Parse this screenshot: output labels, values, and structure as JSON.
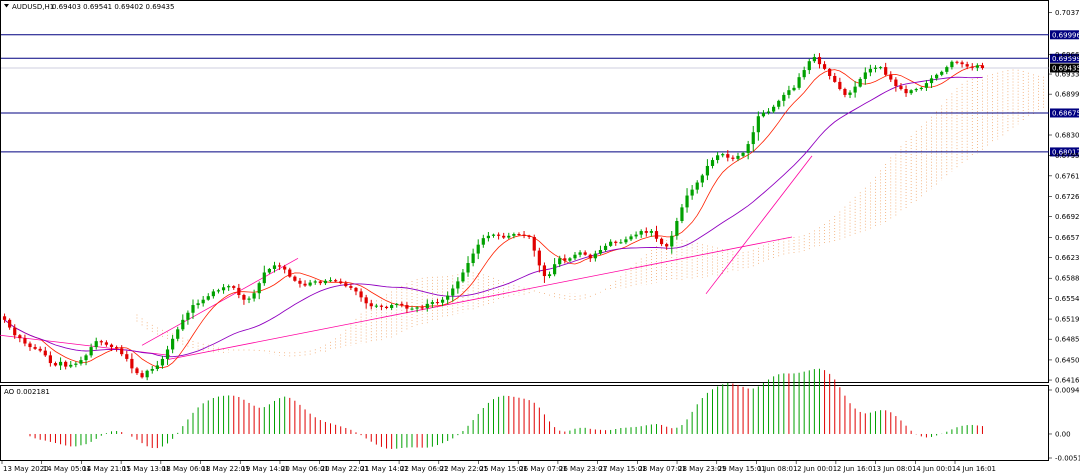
{
  "header": {
    "symbol_timeframe": "AUDUSD,H1",
    "ohlc": "0.69403 0.69541 0.69402 0.69435"
  },
  "indicator": {
    "label": "AO 0.002181",
    "scale": [
      "0.00948",
      "0.00",
      "-0.00518"
    ],
    "scale_values": [
      0.00948,
      0.0,
      -0.00518
    ]
  },
  "colors": {
    "bull": "#00a000",
    "bear": "#e00000",
    "ma_fast": "#ff2000",
    "ma_slow": "#9000c0",
    "trendline": "#ff00a0",
    "cloud": "#f0a060",
    "hline": "#000080",
    "price_label": "#000000"
  },
  "chart_data": {
    "type": "candlestick",
    "instrument": "AUDUSD",
    "timeframe": "H1",
    "price_axis": {
      "labels": [
        "0.70373",
        "0.69663",
        "0.69333",
        "0.68993",
        "0.68303",
        "0.67953",
        "0.67613",
        "0.67263",
        "0.66923",
        "0.66573",
        "0.66233",
        "0.65883",
        "0.65543",
        "0.65193",
        "0.64853",
        "0.64503",
        "0.64163"
      ],
      "values": [
        0.70373,
        0.69663,
        0.69333,
        0.68993,
        0.68303,
        0.67953,
        0.67613,
        0.67263,
        0.66923,
        0.66573,
        0.66233,
        0.65883,
        0.65543,
        0.65193,
        0.64853,
        0.64503,
        0.64163
      ],
      "range": [
        0.6413,
        0.7055
      ]
    },
    "time_axis": [
      "13 May 2020",
      "14 May 05:01",
      "14 May 21:01",
      "15 May 13:01",
      "18 May 06:01",
      "18 May 22:01",
      "19 May 14:01",
      "20 May 06:01",
      "20 May 22:01",
      "21 May 14:01",
      "22 May 06:01",
      "22 May 22:01",
      "25 May 15:01",
      "26 May 07:01",
      "26 May 23:01",
      "27 May 15:01",
      "28 May 07:01",
      "28 May 23:01",
      "29 May 15:01",
      "1 Jun 08:01",
      "2 Jun 00:01",
      "2 Jun 16:01",
      "3 Jun 08:01",
      "4 Jun 00:01",
      "4 Jun 16:01"
    ],
    "levels": [
      {
        "label": "0.69996",
        "value": 0.69996
      },
      {
        "label": "0.69599",
        "value": 0.69599
      },
      {
        "label": "0.68675",
        "value": 0.68675
      },
      {
        "label": "0.68017",
        "value": 0.68017
      }
    ],
    "current_price": {
      "label": "0.69435",
      "value": 0.69435
    },
    "closes": [
      0.6518,
      0.6505,
      0.6492,
      0.6487,
      0.6478,
      0.6472,
      0.6469,
      0.6466,
      0.6458,
      0.6445,
      0.6441,
      0.6447,
      0.6439,
      0.6442,
      0.6444,
      0.645,
      0.6458,
      0.6472,
      0.6482,
      0.648,
      0.6476,
      0.6472,
      0.647,
      0.646,
      0.6452,
      0.6436,
      0.6428,
      0.6421,
      0.6432,
      0.6435,
      0.6441,
      0.6452,
      0.6468,
      0.6486,
      0.6502,
      0.6518,
      0.653,
      0.6543,
      0.6546,
      0.6552,
      0.6558,
      0.6566,
      0.6568,
      0.6573,
      0.6575,
      0.6572,
      0.656,
      0.6552,
      0.6554,
      0.6563,
      0.658,
      0.6598,
      0.6604,
      0.661,
      0.6608,
      0.6603,
      0.6591,
      0.6584,
      0.6579,
      0.6576,
      0.6581,
      0.6583,
      0.658,
      0.6584,
      0.6585,
      0.6583,
      0.658,
      0.6575,
      0.6572,
      0.6566,
      0.6556,
      0.6546,
      0.6541,
      0.6542,
      0.654,
      0.6538,
      0.6543,
      0.6545,
      0.6543,
      0.6537,
      0.6537,
      0.6539,
      0.6538,
      0.6545,
      0.6548,
      0.6547,
      0.6552,
      0.6559,
      0.6571,
      0.6583,
      0.6598,
      0.6614,
      0.663,
      0.6645,
      0.6656,
      0.666,
      0.6662,
      0.666,
      0.6657,
      0.666,
      0.6663,
      0.6662,
      0.666,
      0.6658,
      0.6635,
      0.661,
      0.6592,
      0.6595,
      0.6612,
      0.6622,
      0.6618,
      0.6622,
      0.6628,
      0.6632,
      0.6628,
      0.6622,
      0.663,
      0.6636,
      0.6643,
      0.665,
      0.6648,
      0.6649,
      0.6654,
      0.6659,
      0.6662,
      0.6668,
      0.6665,
      0.6668,
      0.6655,
      0.6646,
      0.6642,
      0.666,
      0.6685,
      0.6708,
      0.6728,
      0.6738,
      0.675,
      0.6762,
      0.6778,
      0.6788,
      0.6796,
      0.6798,
      0.6792,
      0.679,
      0.6795,
      0.68,
      0.6815,
      0.6835,
      0.6862,
      0.6868,
      0.687,
      0.6878,
      0.6888,
      0.6898,
      0.6906,
      0.691,
      0.6928,
      0.694,
      0.6955,
      0.6962,
      0.695,
      0.6942,
      0.693,
      0.692,
      0.6908,
      0.6898,
      0.6902,
      0.6912,
      0.6925,
      0.6936,
      0.6942,
      0.6944,
      0.6945,
      0.6932,
      0.6924,
      0.6913,
      0.6908,
      0.6901,
      0.6906,
      0.6908,
      0.691,
      0.6918,
      0.6926,
      0.6932,
      0.6937,
      0.6945,
      0.6954,
      0.6953,
      0.695,
      0.6946,
      0.6944,
      0.6948,
      0.69435
    ]
  }
}
